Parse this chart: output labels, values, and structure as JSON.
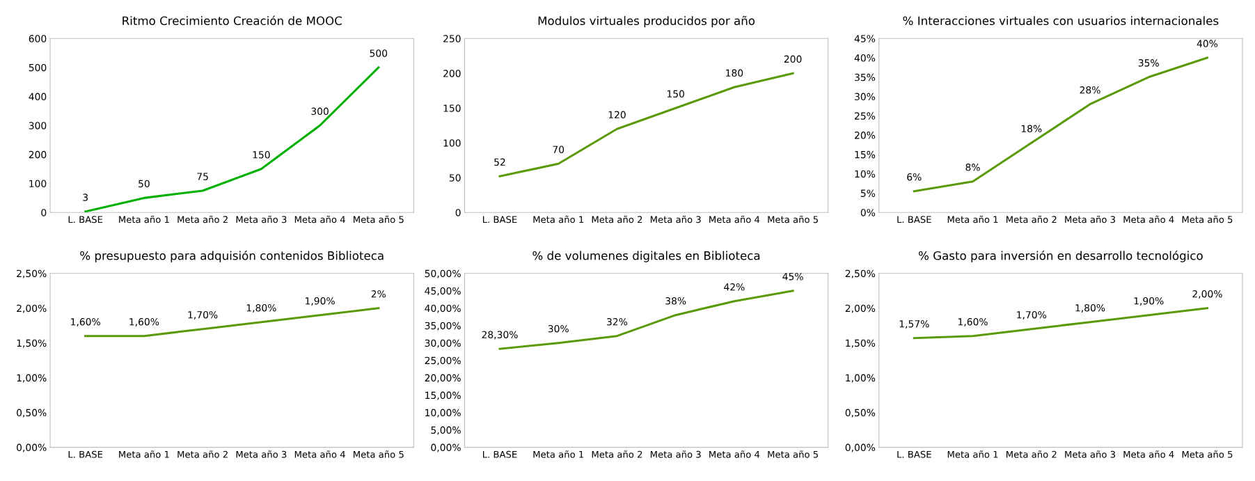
{
  "chart_data": [
    {
      "type": "line",
      "title": "Ritmo Crecimiento Creación de MOOC",
      "categories": [
        "L. BASE",
        "Meta año 1",
        "Meta año 2",
        "Meta año 3",
        "Meta año 4",
        "Meta año 5"
      ],
      "series": [
        {
          "color": "#00b000",
          "values": [
            3,
            50,
            75,
            150,
            300,
            500
          ],
          "value_labels": [
            "3",
            "50",
            "75",
            "150",
            "300",
            "500"
          ]
        }
      ],
      "ylim": [
        0,
        600
      ],
      "yticks": [
        0,
        100,
        200,
        300,
        400,
        500,
        600
      ],
      "grid": false,
      "marker": "none",
      "line_style": "solid"
    },
    {
      "type": "line",
      "title": "Modulos virtuales producidos por año",
      "categories": [
        "L. BASE",
        "Meta año 1",
        "Meta año 2",
        "Meta año 3",
        "Meta año 4",
        "Meta año 5"
      ],
      "series": [
        {
          "color": "#5a9a08",
          "values": [
            52,
            70,
            120,
            150,
            180,
            200
          ],
          "value_labels": [
            "52",
            "70",
            "120",
            "150",
            "180",
            "200"
          ]
        }
      ],
      "ylim": [
        0,
        250
      ],
      "yticks": [
        0,
        50,
        100,
        150,
        200,
        250
      ],
      "grid": false,
      "marker": "none",
      "line_style": "solid"
    },
    {
      "type": "line",
      "title": "% Interacciones virtuales con usuarios internacionales",
      "categories": [
        "L. BASE",
        "Meta año 1",
        "Meta año 2",
        "Meta año 3",
        "Meta año 4",
        "Meta año 5"
      ],
      "series": [
        {
          "color": "#5a9a08",
          "values": [
            5.5,
            8,
            18,
            28,
            35,
            40
          ],
          "value_labels": [
            "6%",
            "8%",
            "18%",
            "28%",
            "35%",
            "40%"
          ]
        }
      ],
      "ylim": [
        0,
        45
      ],
      "yticks": [
        {
          "value": 0,
          "label": "0%"
        },
        {
          "value": 5,
          "label": "5%"
        },
        {
          "value": 10,
          "label": "10%"
        },
        {
          "value": 15,
          "label": "15%"
        },
        {
          "value": 20,
          "label": "20%"
        },
        {
          "value": 25,
          "label": "25%"
        },
        {
          "value": 30,
          "label": "30%"
        },
        {
          "value": 35,
          "label": "35%"
        },
        {
          "value": 40,
          "label": "40%"
        },
        {
          "value": 45,
          "label": "45%"
        }
      ],
      "grid": false,
      "marker": "none",
      "line_style": "solid"
    },
    {
      "type": "line",
      "title": "% presupuesto para adquisión contenidos Biblioteca",
      "categories": [
        "L. BASE",
        "Meta año 1",
        "Meta año 2",
        "Meta año 3",
        "Meta año 4",
        "Meta año 5"
      ],
      "series": [
        {
          "color": "#5a9a08",
          "values": [
            1.6,
            1.6,
            1.7,
            1.8,
            1.9,
            2.0
          ],
          "value_labels": [
            "1,60%",
            "1,60%",
            "1,70%",
            "1,80%",
            "1,90%",
            "2%"
          ]
        }
      ],
      "ylim": [
        0,
        2.5
      ],
      "yticks": [
        {
          "value": 0,
          "label": "0,00%"
        },
        {
          "value": 0.5,
          "label": "0,50%"
        },
        {
          "value": 1.0,
          "label": "1,00%"
        },
        {
          "value": 1.5,
          "label": "1,50%"
        },
        {
          "value": 2.0,
          "label": "2,00%"
        },
        {
          "value": 2.5,
          "label": "2,50%"
        }
      ],
      "grid": false,
      "marker": "none",
      "line_style": "solid"
    },
    {
      "type": "line",
      "title": "% de volumenes digitales en Biblioteca",
      "categories": [
        "L. BASE",
        "Meta año 1",
        "Meta año 2",
        "Meta año 3",
        "Meta año 4",
        "Meta año 5"
      ],
      "series": [
        {
          "color": "#5a9a08",
          "values": [
            28.3,
            30,
            32,
            38,
            42,
            45
          ],
          "value_labels": [
            "28,30%",
            "30%",
            "32%",
            "38%",
            "42%",
            "45%"
          ]
        }
      ],
      "ylim": [
        0,
        50
      ],
      "yticks": [
        {
          "value": 0,
          "label": "0,00%"
        },
        {
          "value": 5,
          "label": "5,00%"
        },
        {
          "value": 10,
          "label": "10,00%"
        },
        {
          "value": 15,
          "label": "15,00%"
        },
        {
          "value": 20,
          "label": "20,00%"
        },
        {
          "value": 25,
          "label": "25,00%"
        },
        {
          "value": 30,
          "label": "30,00%"
        },
        {
          "value": 35,
          "label": "35,00%"
        },
        {
          "value": 40,
          "label": "40,00%"
        },
        {
          "value": 45,
          "label": "45,00%"
        },
        {
          "value": 50,
          "label": "50,00%"
        }
      ],
      "grid": false,
      "marker": "none",
      "line_style": "solid"
    },
    {
      "type": "line",
      "title": "% Gasto para inversión en desarrollo tecnológico",
      "categories": [
        "L. BASE",
        "Meta año 1",
        "Meta año 2",
        "Meta año 3",
        "Meta año 4",
        "Meta año 5"
      ],
      "series": [
        {
          "color": "#5a9a08",
          "values": [
            1.57,
            1.6,
            1.7,
            1.8,
            1.9,
            2.0
          ],
          "value_labels": [
            "1,57%",
            "1,60%",
            "1,70%",
            "1,80%",
            "1,90%",
            "2,00%"
          ]
        }
      ],
      "ylim": [
        0,
        2.5
      ],
      "yticks": [
        {
          "value": 0,
          "label": "0,00%"
        },
        {
          "value": 0.5,
          "label": "0,50%"
        },
        {
          "value": 1.0,
          "label": "1,00%"
        },
        {
          "value": 1.5,
          "label": "1,50%"
        },
        {
          "value": 2.0,
          "label": "2,00%"
        },
        {
          "value": 2.5,
          "label": "2,50%"
        }
      ],
      "grid": false,
      "marker": "none",
      "line_style": "solid"
    }
  ]
}
